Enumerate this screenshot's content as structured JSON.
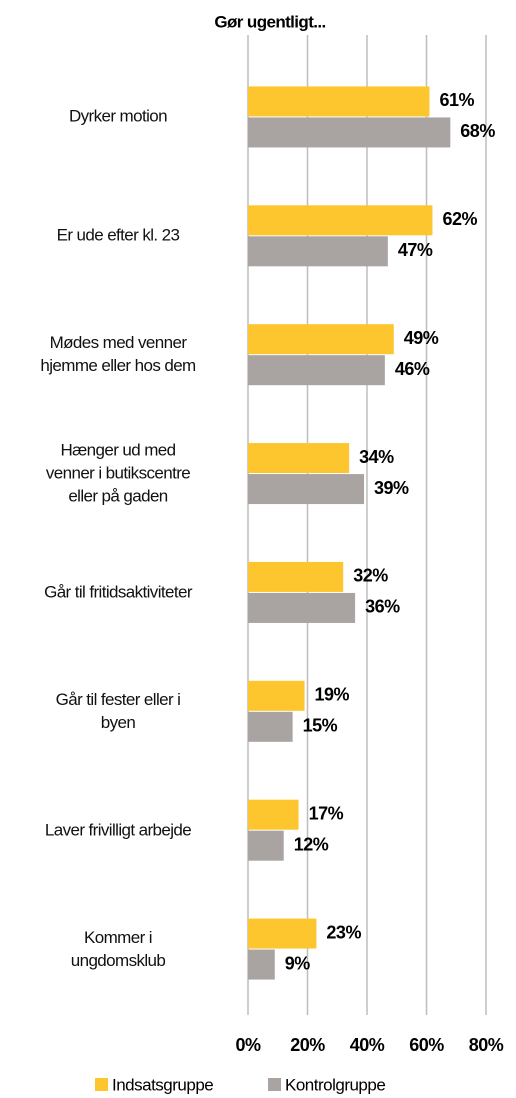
{
  "chart_data": {
    "type": "bar",
    "orientation": "horizontal",
    "title": "Gør ugentligt...",
    "categories": [
      "Dyrker motion",
      "Er ude efter kl. 23",
      "Mødes med venner\nhjemme eller hos dem",
      "Hænger ud med\nvenner i butikscentre\neller på gaden",
      "Går til fritidsaktiviteter",
      "Går til fester eller i\nbyen",
      "Laver frivilligt arbejde",
      "Kommer i\nungdomsklub"
    ],
    "series": [
      {
        "name": "Indsatsgruppe",
        "color": "#fdc52e",
        "values": [
          61,
          62,
          49,
          34,
          32,
          19,
          17,
          23
        ],
        "value_labels": [
          "61%",
          "62%",
          "49%",
          "34%",
          "32%",
          "19%",
          "17%",
          "23%"
        ]
      },
      {
        "name": "Kontrolgruppe",
        "color": "#a9a3a1",
        "values": [
          68,
          47,
          46,
          39,
          36,
          15,
          12,
          9
        ],
        "value_labels": [
          "68%",
          "47%",
          "46%",
          "39%",
          "36%",
          "15%",
          "12%",
          "9%"
        ]
      }
    ],
    "xlim": [
      0,
      80
    ],
    "xticks": [
      {
        "value": 0,
        "label": "0%"
      },
      {
        "value": 20,
        "label": "20%"
      },
      {
        "value": 40,
        "label": "40%"
      },
      {
        "value": 60,
        "label": "60%"
      },
      {
        "value": 80,
        "label": "80%"
      }
    ],
    "grid": true,
    "legend": "bottom"
  }
}
